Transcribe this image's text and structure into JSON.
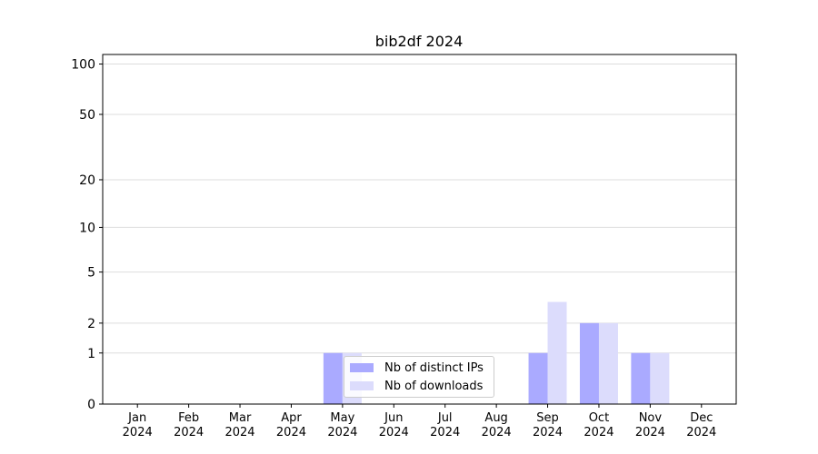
{
  "chart_data": {
    "type": "bar",
    "title": "bib2df 2024",
    "categories": [
      "Jan 2024",
      "Feb 2024",
      "Mar 2024",
      "Apr 2024",
      "May 2024",
      "Jun 2024",
      "Jul 2024",
      "Aug 2024",
      "Sep 2024",
      "Oct 2024",
      "Nov 2024",
      "Dec 2024"
    ],
    "series": [
      {
        "name": "Nb of distinct IPs",
        "color": "#aaaaff",
        "values": [
          0,
          0,
          0,
          0,
          1,
          0,
          0,
          0,
          1,
          2,
          1,
          0
        ]
      },
      {
        "name": "Nb of downloads",
        "color": "#dcdcfc",
        "values": [
          0,
          0,
          0,
          0,
          1,
          0,
          0,
          0,
          3,
          2,
          1,
          0
        ]
      }
    ],
    "yscale": "log1p",
    "ylim": [
      0,
      114
    ],
    "yticks": [
      0,
      1,
      2,
      5,
      10,
      20,
      50,
      100
    ],
    "grid": true,
    "legend": "lower center"
  }
}
